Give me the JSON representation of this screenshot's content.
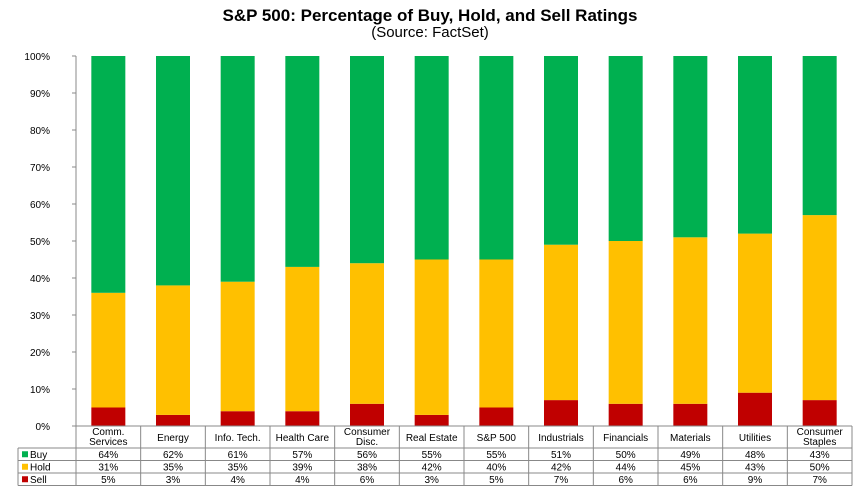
{
  "chart_data": {
    "type": "bar",
    "stacked": true,
    "title": "S&P 500: Percentage of Buy, Hold, and Sell Ratings",
    "subtitle": "(Source: FactSet)",
    "categories": [
      [
        "Comm.",
        "Services"
      ],
      [
        "Energy"
      ],
      [
        "Info. Tech."
      ],
      [
        "Health Care"
      ],
      [
        "Consumer",
        "Disc."
      ],
      [
        "Real Estate"
      ],
      [
        "S&P 500"
      ],
      [
        "Industrials"
      ],
      [
        "Financials"
      ],
      [
        "Materials"
      ],
      [
        "Utilities"
      ],
      [
        "Consumer",
        "Staples"
      ]
    ],
    "series": [
      {
        "name": "Buy",
        "color": "#00b050",
        "values": [
          64,
          62,
          61,
          57,
          56,
          55,
          55,
          51,
          50,
          49,
          48,
          43
        ]
      },
      {
        "name": "Hold",
        "color": "#ffc000",
        "values": [
          31,
          35,
          35,
          39,
          38,
          42,
          40,
          42,
          44,
          45,
          43,
          50
        ]
      },
      {
        "name": "Sell",
        "color": "#c00000",
        "values": [
          5,
          3,
          4,
          4,
          6,
          3,
          5,
          7,
          6,
          6,
          9,
          7
        ]
      }
    ],
    "y_ticks": [
      "0%",
      "10%",
      "20%",
      "30%",
      "40%",
      "50%",
      "60%",
      "70%",
      "80%",
      "90%",
      "100%"
    ],
    "ylim": [
      0,
      100
    ],
    "grid": false,
    "legend": "data-table-left"
  }
}
